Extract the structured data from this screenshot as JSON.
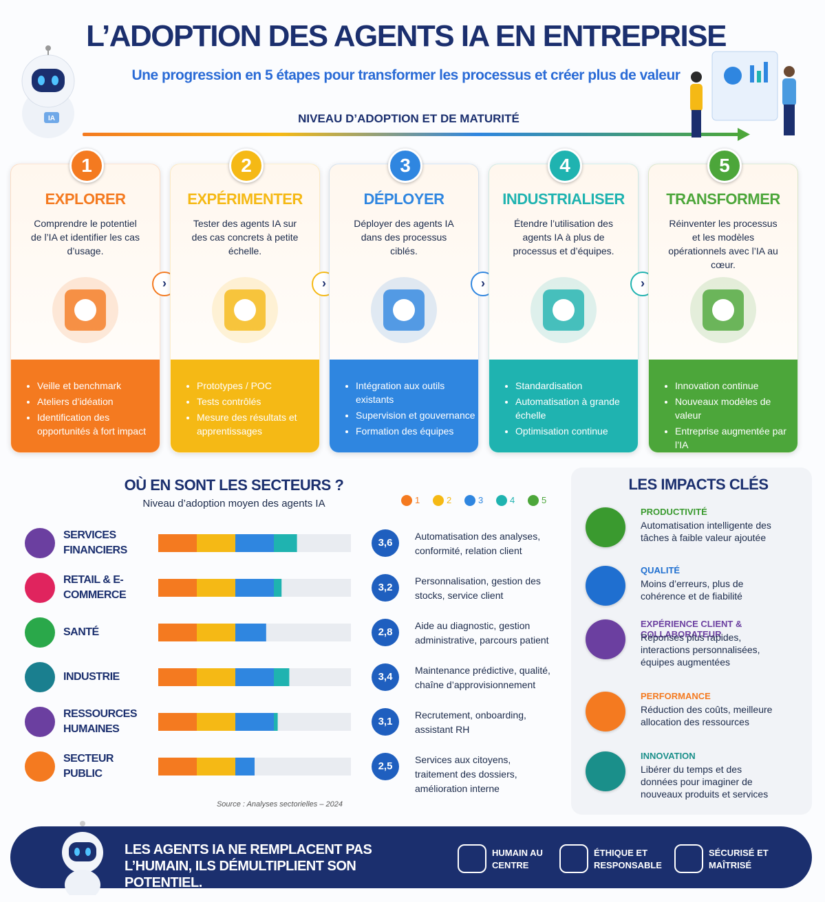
{
  "header": {
    "title": "L’ADOPTION DES AGENTS IA EN ENTREPRISE",
    "subtitle": "Une progression en 5 étapes pour transformer les processus et créer plus de valeur",
    "axis_label": "NIVEAU D’ADOPTION ET DE MATURITÉ",
    "robot_badge": "IA"
  },
  "steps": [
    {
      "number": "1",
      "title": "EXPLORER",
      "color": "#f47a20",
      "description": "Comprendre le potentiel de l’IA et identifier les cas d’usage.",
      "bullets": [
        "Veille et benchmark",
        "Ateliers d’idéation",
        "Identification des opportunités à fort impact"
      ]
    },
    {
      "number": "2",
      "title": "EXPÉRIMENTER",
      "color": "#f5b915",
      "description": "Tester des agents IA sur des cas concrets à petite échelle.",
      "bullets": [
        "Prototypes / POC",
        "Tests contrôlés",
        "Mesure des résultats et apprentissages"
      ]
    },
    {
      "number": "3",
      "title": "DÉPLOYER",
      "color": "#2f86e0",
      "description": "Déployer des agents IA dans des processus ciblés.",
      "bullets": [
        "Intégration aux outils existants",
        "Supervision et gouvernance",
        "Formation des équipes"
      ]
    },
    {
      "number": "4",
      "title": "INDUSTRIALISER",
      "color": "#1fb3b0",
      "description": "Étendre l’utilisation des agents IA à plus de processus et d’équipes.",
      "bullets": [
        "Standardisation",
        "Automatisation à grande échelle",
        "Optimisation continue"
      ]
    },
    {
      "number": "5",
      "title": "TRANSFORMER",
      "color": "#4ca63a",
      "description": "Réinventer les processus et les modèles opérationnels avec l’IA au cœur.",
      "bullets": [
        "Innovation continue",
        "Nouveaux modèles de valeur",
        "Entreprise augmentée par l’IA"
      ]
    }
  ],
  "sectors": {
    "title": "OÙ EN SONT LES SECTEURS ?",
    "subtitle": "Niveau d’adoption moyen des agents IA",
    "legend": [
      "1",
      "2",
      "3",
      "4",
      "5"
    ],
    "items": [
      {
        "name": "SERVICES FINANCIERS",
        "icon_color": "#6b3fa0",
        "score": 3.6,
        "score_label": "3,6",
        "description": "Automatisation des analyses, conformité, relation client"
      },
      {
        "name": "RETAIL & E-COMMERCE",
        "icon_color": "#e0245e",
        "score": 3.2,
        "score_label": "3,2",
        "description": "Personnalisation, gestion des stocks, service client"
      },
      {
        "name": "SANTÉ",
        "icon_color": "#2aa84a",
        "score": 2.8,
        "score_label": "2,8",
        "description": "Aide au diagnostic, gestion administrative, parcours patient"
      },
      {
        "name": "INDUSTRIE",
        "icon_color": "#1a7f8f",
        "score": 3.4,
        "score_label": "3,4",
        "description": "Maintenance prédictive, qualité, chaîne d’approvisionnement"
      },
      {
        "name": "RESSOURCES HUMAINES",
        "icon_color": "#6b3fa0",
        "score": 3.1,
        "score_label": "3,1",
        "description": "Recrutement, onboarding, assistant RH"
      },
      {
        "name": "SECTEUR PUBLIC",
        "icon_color": "#f47a20",
        "score": 2.5,
        "score_label": "2,5",
        "description": "Services aux citoyens, traitement des dossiers, amélioration interne"
      }
    ],
    "source": "Source : Analyses sectorielles – 2024"
  },
  "impacts": {
    "title": "LES IMPACTS CLÉS",
    "items": [
      {
        "title": "PRODUCTIVITÉ",
        "color": "#3a9a2f",
        "description": "Automatisation intelligente des tâches à faible valeur ajoutée"
      },
      {
        "title": "QUALITÉ",
        "color": "#1f6fd0",
        "description": "Moins d’erreurs, plus de cohérence et de fiabilité"
      },
      {
        "title": "EXPÉRIENCE CLIENT & COLLABORATEUR",
        "color": "#6b3fa0",
        "description": "Réponses plus rapides, interactions personnalisées, équipes augmentées"
      },
      {
        "title": "PERFORMANCE",
        "color": "#f47a20",
        "description": "Réduction des coûts, meilleure allocation des ressources"
      },
      {
        "title": "INNOVATION",
        "color": "#1a8f8a",
        "description": "Libérer du temps et des données pour imaginer de nouveaux produits et services"
      }
    ]
  },
  "footer": {
    "message": "LES AGENTS IA NE REMPLACENT PAS L’HUMAIN, ILS DÉMULTIPLIENT SON POTENTIEL.",
    "badges": [
      "HUMAIN AU CENTRE",
      "ÉTHIQUE ET RESPONSABLE",
      "SÉCURISÉ ET MAÎTRISÉ"
    ]
  }
}
